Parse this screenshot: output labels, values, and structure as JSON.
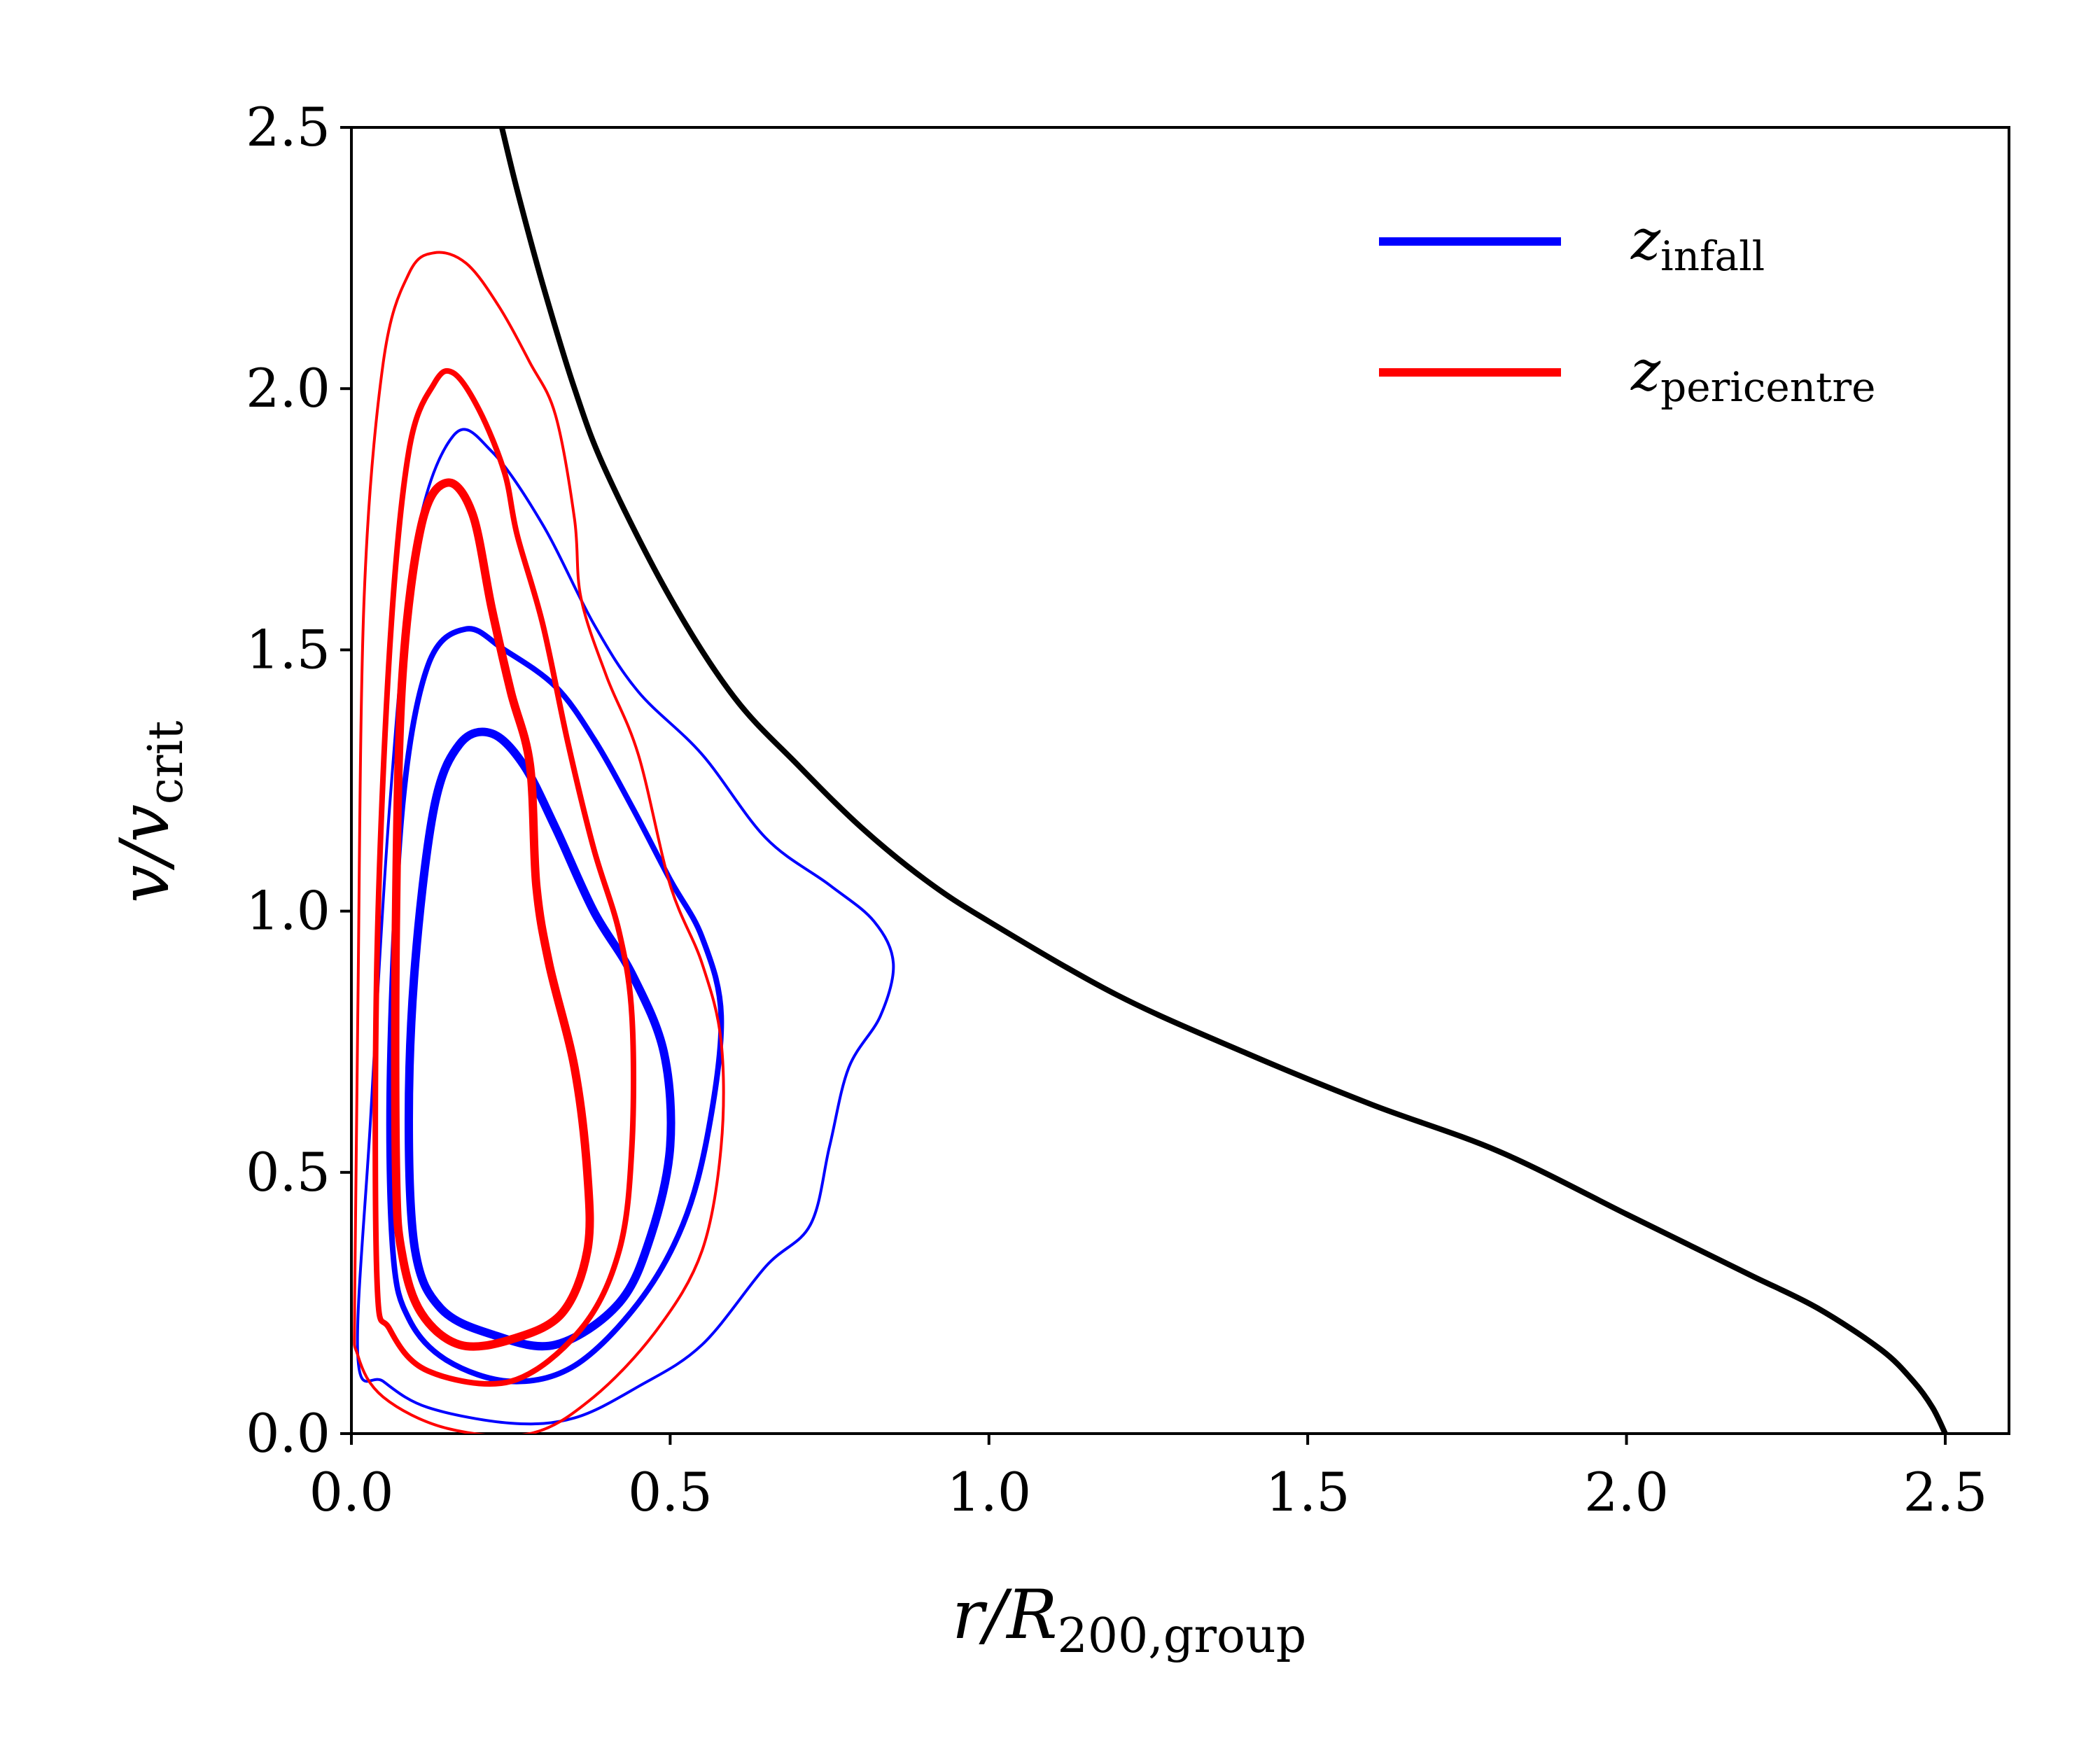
{
  "chart_data": {
    "type": "line",
    "xlabel": {
      "main": "r/R",
      "sub": "200,group"
    },
    "ylabel": {
      "main": "v/v",
      "sub": "crit"
    },
    "xlim": [
      0.0,
      2.6
    ],
    "ylim": [
      0.0,
      2.5
    ],
    "xticks": [
      0.0,
      0.5,
      1.0,
      1.5,
      2.0,
      2.5
    ],
    "xtick_labels": [
      "0.0",
      "0.5",
      "1.0",
      "1.5",
      "2.0",
      "2.5"
    ],
    "yticks": [
      0.0,
      0.5,
      1.0,
      1.5,
      2.0,
      2.5
    ],
    "ytick_labels": [
      "0.0",
      "0.5",
      "1.0",
      "1.5",
      "2.0",
      "2.5"
    ],
    "legend": {
      "position": "top-right",
      "entries": [
        {
          "main": "z",
          "sub": "infall",
          "color": "#0000ff"
        },
        {
          "main": "z",
          "sub": "pericentre",
          "color": "#ff0000"
        }
      ]
    },
    "boundary_curve": {
      "name": "escape boundary",
      "color": "#000000",
      "points": [
        [
          0.236,
          2.5
        ],
        [
          0.26,
          2.38
        ],
        [
          0.3,
          2.2
        ],
        [
          0.35,
          2.0
        ],
        [
          0.4,
          1.84
        ],
        [
          0.5,
          1.6
        ],
        [
          0.6,
          1.41
        ],
        [
          0.7,
          1.28
        ],
        [
          0.8,
          1.16
        ],
        [
          0.9,
          1.06
        ],
        [
          1.0,
          0.98
        ],
        [
          1.2,
          0.84
        ],
        [
          1.4,
          0.73
        ],
        [
          1.6,
          0.63
        ],
        [
          1.8,
          0.54
        ],
        [
          2.0,
          0.42
        ],
        [
          2.1,
          0.36
        ],
        [
          2.2,
          0.3
        ],
        [
          2.3,
          0.24
        ],
        [
          2.4,
          0.16
        ],
        [
          2.45,
          0.1
        ],
        [
          2.48,
          0.05
        ],
        [
          2.5,
          0.0
        ]
      ]
    },
    "contour_series": [
      {
        "name": "infall outer",
        "color": "#0000ff",
        "level": "outer",
        "points": [
          [
            0.01,
            0.15
          ],
          [
            0.03,
            0.6
          ],
          [
            0.06,
            1.2
          ],
          [
            0.1,
            1.7
          ],
          [
            0.16,
            1.91
          ],
          [
            0.22,
            1.88
          ],
          [
            0.3,
            1.74
          ],
          [
            0.38,
            1.55
          ],
          [
            0.45,
            1.42
          ],
          [
            0.55,
            1.3
          ],
          [
            0.65,
            1.14
          ],
          [
            0.75,
            1.05
          ],
          [
            0.82,
            0.98
          ],
          [
            0.85,
            0.9
          ],
          [
            0.83,
            0.8
          ],
          [
            0.78,
            0.7
          ],
          [
            0.75,
            0.55
          ],
          [
            0.72,
            0.4
          ],
          [
            0.65,
            0.32
          ],
          [
            0.55,
            0.17
          ],
          [
            0.45,
            0.09
          ],
          [
            0.35,
            0.03
          ],
          [
            0.25,
            0.02
          ],
          [
            0.12,
            0.05
          ],
          [
            0.05,
            0.1
          ],
          [
            0.01,
            0.15
          ]
        ]
      },
      {
        "name": "infall middle",
        "color": "#0000ff",
        "level": "middle",
        "points": [
          [
            0.065,
            0.35
          ],
          [
            0.06,
            0.7
          ],
          [
            0.08,
            1.2
          ],
          [
            0.12,
            1.47
          ],
          [
            0.18,
            1.54
          ],
          [
            0.24,
            1.5
          ],
          [
            0.32,
            1.43
          ],
          [
            0.38,
            1.33
          ],
          [
            0.44,
            1.2
          ],
          [
            0.5,
            1.06
          ],
          [
            0.55,
            0.95
          ],
          [
            0.58,
            0.8
          ],
          [
            0.56,
            0.58
          ],
          [
            0.52,
            0.4
          ],
          [
            0.45,
            0.25
          ],
          [
            0.35,
            0.13
          ],
          [
            0.25,
            0.1
          ],
          [
            0.15,
            0.14
          ],
          [
            0.09,
            0.22
          ],
          [
            0.065,
            0.35
          ]
        ]
      },
      {
        "name": "infall inner",
        "color": "#0000ff",
        "level": "inner",
        "points": [
          [
            0.09,
            0.6
          ],
          [
            0.1,
            0.9
          ],
          [
            0.13,
            1.2
          ],
          [
            0.17,
            1.32
          ],
          [
            0.22,
            1.34
          ],
          [
            0.27,
            1.28
          ],
          [
            0.32,
            1.16
          ],
          [
            0.38,
            1.0
          ],
          [
            0.44,
            0.88
          ],
          [
            0.49,
            0.73
          ],
          [
            0.5,
            0.55
          ],
          [
            0.47,
            0.38
          ],
          [
            0.42,
            0.25
          ],
          [
            0.32,
            0.17
          ],
          [
            0.22,
            0.19
          ],
          [
            0.14,
            0.24
          ],
          [
            0.1,
            0.35
          ],
          [
            0.09,
            0.6
          ]
        ]
      },
      {
        "name": "pericentre outer",
        "color": "#ff0000",
        "level": "outer",
        "points": [
          [
            0.005,
            0.25
          ],
          [
            0.01,
            0.8
          ],
          [
            0.02,
            1.6
          ],
          [
            0.05,
            2.05
          ],
          [
            0.09,
            2.22
          ],
          [
            0.13,
            2.26
          ],
          [
            0.18,
            2.24
          ],
          [
            0.23,
            2.16
          ],
          [
            0.28,
            2.05
          ],
          [
            0.32,
            1.95
          ],
          [
            0.35,
            1.75
          ],
          [
            0.36,
            1.6
          ],
          [
            0.4,
            1.45
          ],
          [
            0.45,
            1.3
          ],
          [
            0.5,
            1.05
          ],
          [
            0.55,
            0.9
          ],
          [
            0.58,
            0.75
          ],
          [
            0.58,
            0.55
          ],
          [
            0.55,
            0.35
          ],
          [
            0.48,
            0.2
          ],
          [
            0.38,
            0.07
          ],
          [
            0.28,
            0.0
          ],
          [
            0.15,
            0.01
          ],
          [
            0.05,
            0.07
          ],
          [
            0.01,
            0.15
          ],
          [
            0.005,
            0.25
          ]
        ]
      },
      {
        "name": "pericentre middle",
        "color": "#ff0000",
        "level": "middle",
        "points": [
          [
            0.04,
            0.3
          ],
          [
            0.04,
            0.9
          ],
          [
            0.06,
            1.5
          ],
          [
            0.09,
            1.88
          ],
          [
            0.13,
            2.01
          ],
          [
            0.16,
            2.03
          ],
          [
            0.2,
            1.96
          ],
          [
            0.24,
            1.84
          ],
          [
            0.26,
            1.72
          ],
          [
            0.3,
            1.55
          ],
          [
            0.34,
            1.32
          ],
          [
            0.38,
            1.12
          ],
          [
            0.42,
            0.96
          ],
          [
            0.44,
            0.8
          ],
          [
            0.44,
            0.55
          ],
          [
            0.42,
            0.35
          ],
          [
            0.36,
            0.2
          ],
          [
            0.25,
            0.1
          ],
          [
            0.12,
            0.12
          ],
          [
            0.06,
            0.2
          ],
          [
            0.04,
            0.3
          ]
        ]
      },
      {
        "name": "pericentre inner",
        "color": "#ff0000",
        "level": "inner",
        "points": [
          [
            0.07,
            0.5
          ],
          [
            0.07,
            1.0
          ],
          [
            0.08,
            1.45
          ],
          [
            0.11,
            1.74
          ],
          [
            0.15,
            1.82
          ],
          [
            0.19,
            1.76
          ],
          [
            0.22,
            1.58
          ],
          [
            0.25,
            1.42
          ],
          [
            0.28,
            1.28
          ],
          [
            0.29,
            1.05
          ],
          [
            0.31,
            0.9
          ],
          [
            0.35,
            0.7
          ],
          [
            0.37,
            0.5
          ],
          [
            0.37,
            0.35
          ],
          [
            0.33,
            0.23
          ],
          [
            0.25,
            0.18
          ],
          [
            0.17,
            0.17
          ],
          [
            0.11,
            0.23
          ],
          [
            0.08,
            0.34
          ],
          [
            0.07,
            0.5
          ]
        ]
      }
    ]
  }
}
